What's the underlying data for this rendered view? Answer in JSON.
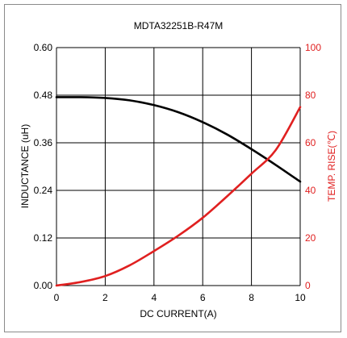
{
  "chart_data": {
    "type": "line",
    "title": "MDTA32251B-R47M",
    "xlabel": "DC CURRENT(A)",
    "ylabel_left": "INDUCTANCE (uH)",
    "ylabel_right": "TEMP. RISE(℃)",
    "xlim": [
      0,
      10
    ],
    "ylim_left": [
      0,
      0.6
    ],
    "ylim_right": [
      0,
      100
    ],
    "x_ticks": [
      "0",
      "2",
      "4",
      "6",
      "8",
      "10"
    ],
    "y_left_ticks": [
      "0.00",
      "0.12",
      "0.24",
      "0.36",
      "0.48",
      "0.60"
    ],
    "y_right_ticks": [
      "0",
      "20",
      "40",
      "60",
      "80",
      "100"
    ],
    "grid": true,
    "series": [
      {
        "name": "",
        "axis": "left",
        "color": "#000000",
        "x": [
          0,
          1,
          2,
          3,
          4,
          5,
          6,
          7,
          8,
          9,
          10
        ],
        "values": [
          0.475,
          0.475,
          0.473,
          0.467,
          0.455,
          0.437,
          0.412,
          0.381,
          0.344,
          0.304,
          0.262
        ]
      },
      {
        "name": "",
        "axis": "right",
        "color": "#e02020",
        "x": [
          0,
          1,
          2,
          3,
          4,
          5,
          6,
          7,
          8,
          9,
          10
        ],
        "values": [
          0,
          1.5,
          4,
          8.5,
          14.5,
          21,
          28.5,
          37.5,
          47,
          57,
          75
        ]
      }
    ]
  }
}
